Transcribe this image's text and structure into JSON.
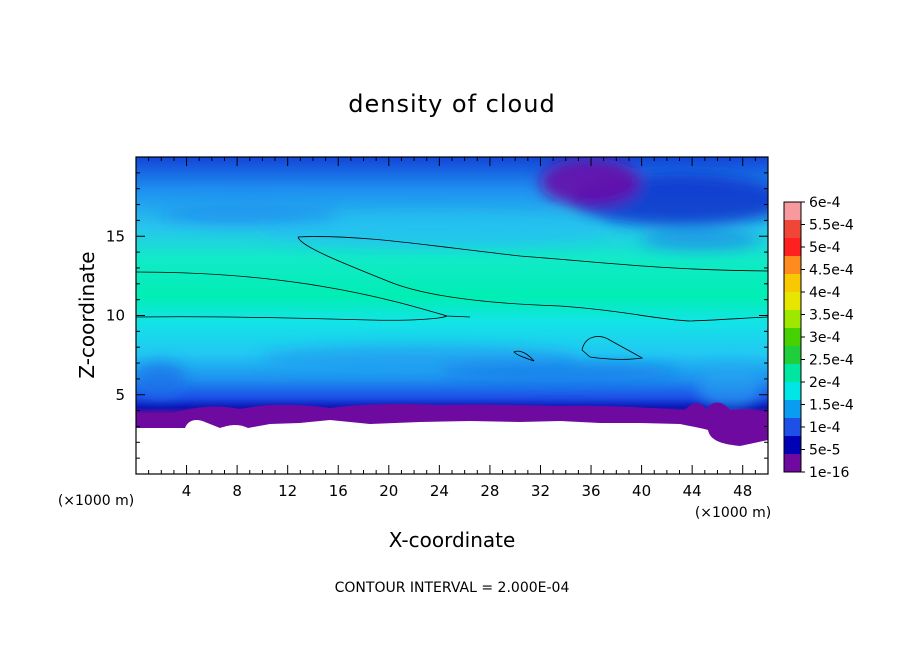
{
  "chart_data": {
    "type": "heatmap",
    "title": "density of cloud",
    "xlabel": "X-coordinate",
    "ylabel": "Z-coordinate",
    "x_unit": "(×1000 m)",
    "y_unit": "(×1000 m)",
    "xlim": [
      0,
      50
    ],
    "ylim": [
      0,
      20
    ],
    "x_ticks": [
      "4",
      "8",
      "12",
      "16",
      "20",
      "24",
      "28",
      "32",
      "36",
      "40",
      "44",
      "48"
    ],
    "y_ticks": [
      "5",
      "10",
      "15"
    ],
    "colorbar_labels": [
      "6e-4",
      "5.5e-4",
      "5e-4",
      "4.5e-4",
      "4e-4",
      "3.5e-4",
      "3e-4",
      "2.5e-4",
      "2e-4",
      "1.5e-4",
      "1e-4",
      "5e-5",
      "1e-16"
    ],
    "colorbar_colors": [
      "#f79aa0",
      "#f04638",
      "#ff2020",
      "#ff8a1e",
      "#f8c800",
      "#e6e600",
      "#9ee800",
      "#46d200",
      "#1ece3a",
      "#00e6a0",
      "#00e6e6",
      "#0a9cf0",
      "#1e50e6",
      "#0000b4",
      "#6e0aa0"
    ],
    "contour_interval_text": "CONTOUR INTERVAL = 2.000E-04",
    "contour_level": 0.0002
  }
}
